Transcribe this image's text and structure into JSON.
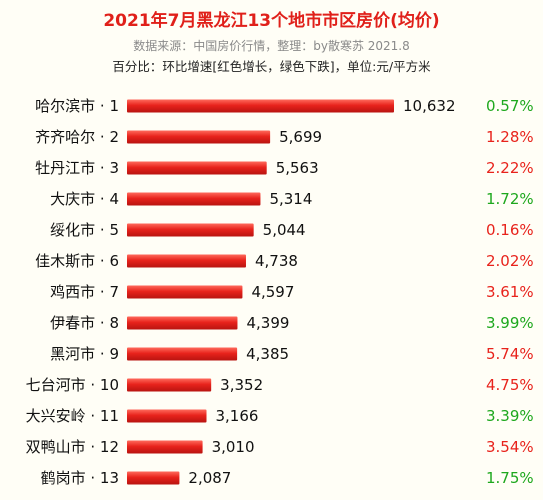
{
  "header": {
    "title": "2021年7月黑龙江13个地市市区房价(均价)",
    "source": "数据来源：中国房价行情，整理：by散寒苏 2021.8",
    "note": "百分比：环比增速[红色增长，绿色下跌]，单位:元/平方米"
  },
  "colors": {
    "bar": "#e8231c",
    "increase": "#e8231c",
    "decrease": "#1ea81e",
    "title": "#e0201a"
  },
  "chart_data": {
    "type": "bar",
    "orientation": "horizontal",
    "unit": "元/平方米",
    "categories": [
      "哈尔滨市 · 1",
      "齐齐哈尔 · 2",
      "牡丹江市 · 3",
      "大庆市 · 4",
      "绥化市 · 5",
      "佳木斯市 · 6",
      "鸡西市 · 7",
      "伊春市 · 8",
      "黑河市 · 9",
      "七台河市 · 10",
      "大兴安岭 · 11",
      "双鸭山市 · 12",
      "鹤岗市 · 13"
    ],
    "values": [
      10632,
      5699,
      5563,
      5314,
      5044,
      4738,
      4597,
      4399,
      4385,
      3352,
      3166,
      3010,
      2087
    ],
    "value_labels": [
      "10,632",
      "5,699",
      "5,563",
      "5,314",
      "5,044",
      "4,738",
      "4,597",
      "4,399",
      "4,385",
      "3,352",
      "3,166",
      "3,010",
      "2,087"
    ],
    "changes": [
      "0.57%",
      "1.28%",
      "2.22%",
      "1.72%",
      "0.16%",
      "2.02%",
      "3.61%",
      "3.99%",
      "5.74%",
      "4.75%",
      "3.39%",
      "3.54%",
      "1.75%"
    ],
    "change_direction": [
      "down",
      "up",
      "up",
      "down",
      "up",
      "up",
      "up",
      "down",
      "up",
      "up",
      "down",
      "up",
      "down"
    ],
    "xlim": [
      0,
      11000
    ],
    "grid": false,
    "legend": false
  }
}
